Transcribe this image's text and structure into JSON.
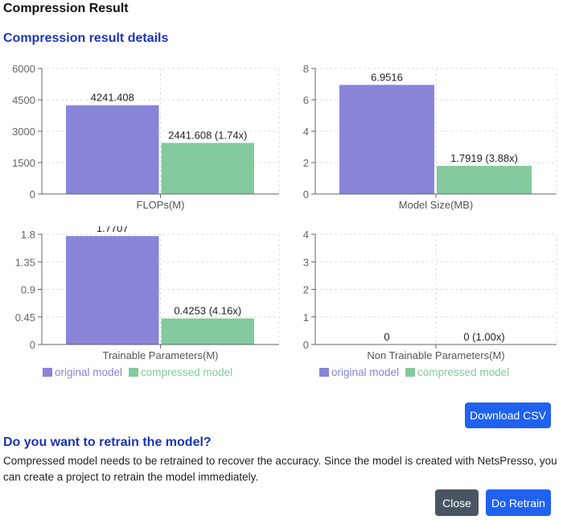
{
  "title": "Compression Result",
  "section_title": "Compression result details",
  "colors": {
    "original": "#8884d8",
    "compressed": "#82ca9d",
    "heading": "#1a35b8",
    "primary_button": "#1f62f0",
    "close_button": "#4a5563"
  },
  "legend": {
    "original": "original model",
    "compressed": "compressed model"
  },
  "chart_data": [
    {
      "type": "bar",
      "xlabel": "FLOPs(M)",
      "ylim": [
        0,
        6000
      ],
      "ticks": [
        "0",
        "1500",
        "3000",
        "4500",
        "6000"
      ],
      "grid": true,
      "series": [
        {
          "name": "original model",
          "value": 4241.408,
          "label": "4241.408"
        },
        {
          "name": "compressed model",
          "value": 2441.608,
          "label": "2441.608 (1.74x)"
        }
      ]
    },
    {
      "type": "bar",
      "xlabel": "Model Size(MB)",
      "ylim": [
        0,
        8
      ],
      "ticks": [
        "0",
        "2",
        "4",
        "6",
        "8"
      ],
      "grid": true,
      "series": [
        {
          "name": "original model",
          "value": 6.9516,
          "label": "6.9516"
        },
        {
          "name": "compressed model",
          "value": 1.7919,
          "label": "1.7919 (3.88x)"
        }
      ]
    },
    {
      "type": "bar",
      "xlabel": "Trainable Parameters(M)",
      "ylim": [
        0,
        1.8
      ],
      "ticks": [
        "0",
        "0.45",
        "0.9",
        "1.35",
        "1.8"
      ],
      "grid": true,
      "series": [
        {
          "name": "original model",
          "value": 1.7707,
          "label": "1.7707"
        },
        {
          "name": "compressed model",
          "value": 0.4253,
          "label": "0.4253 (4.16x)"
        }
      ]
    },
    {
      "type": "bar",
      "xlabel": "Non Trainable Parameters(M)",
      "ylim": [
        0,
        4
      ],
      "ticks": [
        "0",
        "1",
        "2",
        "3",
        "4"
      ],
      "grid": true,
      "series": [
        {
          "name": "original model",
          "value": 0,
          "label": "0"
        },
        {
          "name": "compressed model",
          "value": 0,
          "label": "0 (1.00x)"
        }
      ]
    }
  ],
  "download_label": "Download CSV",
  "retrain": {
    "title": "Do you want to retrain the model?",
    "text": "Compressed model needs to be retrained to recover the accuracy. Since the model is created with NetsPresso, you can create a project to retrain the model immediately."
  },
  "close_label": "Close",
  "retrain_label": "Do Retrain"
}
